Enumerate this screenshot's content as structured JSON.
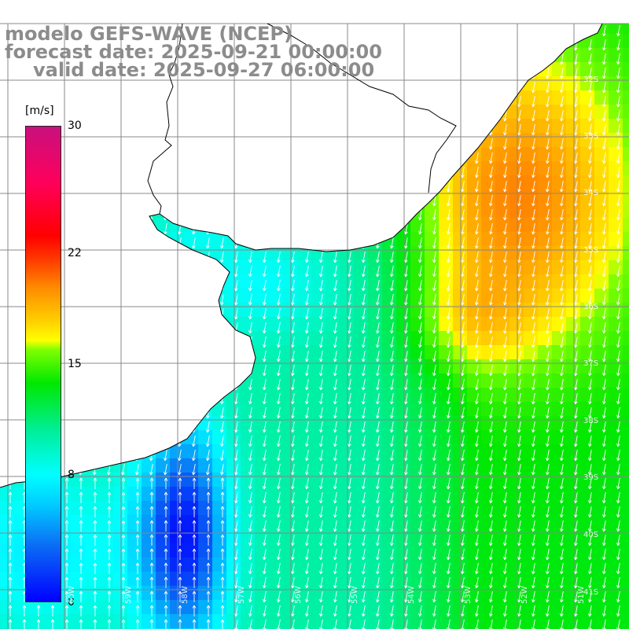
{
  "title": {
    "line1": "modelo GEFS-WAVE (NCEP)",
    "line2": "forecast date: 2025-09-21 00:00:00",
    "line3": "valid date: 2025-09-27 06:00:00"
  },
  "colorbar": {
    "unit": "[m/s]",
    "ticks": [
      "30",
      "22",
      "15",
      "8",
      "0"
    ],
    "tick_values": [
      30,
      22,
      15,
      8,
      0
    ],
    "min": 0,
    "max": 30
  },
  "lat_labels": [
    "32S",
    "33S",
    "34S",
    "35S",
    "36S",
    "37S",
    "38S",
    "39S",
    "40S",
    "41S"
  ],
  "lon_labels": [
    "60W",
    "59W",
    "58W",
    "57W",
    "56W",
    "55W",
    "54W",
    "53W",
    "52W",
    "51W"
  ],
  "colors": {
    "land": "#ffffff",
    "grid": "#888888",
    "coast": "#000000",
    "arrow": "#ffffff",
    "title": "#8c8c8c"
  }
}
